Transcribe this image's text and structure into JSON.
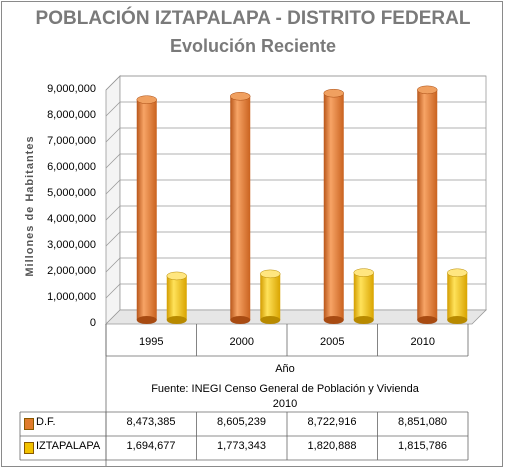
{
  "chart_data": {
    "type": "bar",
    "title": "POBLACIÓN IZTAPALAPA - DISTRITO FEDERAL",
    "subtitle": "Evolución Reciente",
    "xlabel": "Año",
    "ylabel": "Millones de Habitantes",
    "categories": [
      "1995",
      "2000",
      "2005",
      "2010"
    ],
    "ylim": [
      0,
      9000000
    ],
    "yticks": [
      "0",
      "1,000,000",
      "2,000,000",
      "3,000,000",
      "4,000,000",
      "5,000,000",
      "6,000,000",
      "7,000,000",
      "8,000,000",
      "9,000,000"
    ],
    "series": [
      {
        "name": "D.F.",
        "values": [
          8473385,
          8605239,
          8722916,
          8851080
        ],
        "labels": [
          "8,473,385",
          "8,605,239",
          "8,722,916",
          "8,851,080"
        ],
        "color": "#e07b2c"
      },
      {
        "name": "IZTAPALAPA",
        "values": [
          1694677,
          1773343,
          1820888,
          1815786
        ],
        "labels": [
          "1,694,677",
          "1,773,343",
          "1,820,888",
          "1,815,786"
        ],
        "color": "#f2c200"
      }
    ],
    "note": "Fuente: INEGI Censo General de Población y Vivienda 2010",
    "grid": true,
    "legend": "data-table"
  }
}
